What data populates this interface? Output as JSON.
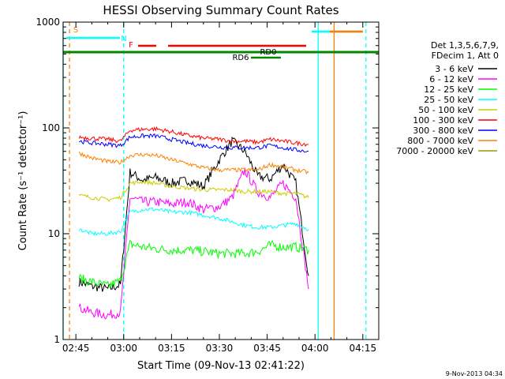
{
  "chart_data": {
    "type": "line",
    "title": "HESSI Observing Summary Count Rates",
    "xlabel": "Start Time (09-Nov-13 02:41:22)",
    "ylabel": "Count Rate (s⁻¹ detector⁻¹)",
    "y_scale": "log",
    "ylim": [
      1,
      1000
    ],
    "xlim": [
      "02:41",
      "04:20"
    ],
    "x_ticks": [
      "02:45",
      "03:00",
      "03:15",
      "03:30",
      "03:45",
      "04:00",
      "04:15"
    ],
    "y_ticks": [
      "1",
      "10",
      "100",
      "1000"
    ],
    "timestamp": "9-Nov-2013 04:34",
    "legend": {
      "position": "right",
      "header": [
        "Det 1,3,5,6,7,9,",
        "FDecim 1, Att 0"
      ],
      "entries": [
        {
          "label": "3 - 6 keV",
          "color": "#000000"
        },
        {
          "label": "6 - 12 keV",
          "color": "#ff00ff"
        },
        {
          "label": "12 - 25 keV",
          "color": "#00ff00"
        },
        {
          "label": "25 - 50 keV",
          "color": "#00ffff"
        },
        {
          "label": "50 - 100 keV",
          "color": "#cccc00"
        },
        {
          "label": "100 - 300 keV",
          "color": "#ff0000"
        },
        {
          "label": "300 - 800 keV",
          "color": "#0000ff"
        },
        {
          "label": "800 - 7000 keV",
          "color": "#ff8000"
        },
        {
          "label": "7000 - 20000 keV",
          "color": "#999900"
        }
      ]
    },
    "x": [
      "02:46",
      "02:50",
      "02:55",
      "02:59",
      "03:02",
      "03:06",
      "03:10",
      "03:15",
      "03:20",
      "03:25",
      "03:30",
      "03:34",
      "03:38",
      "03:42",
      "03:46",
      "03:50",
      "03:54",
      "03:58"
    ],
    "series": [
      {
        "name": "3 - 6 keV",
        "color": "#000000",
        "values": [
          3.5,
          3.2,
          3.0,
          3.3,
          38,
          32,
          34,
          30,
          32,
          28,
          50,
          75,
          60,
          35,
          33,
          45,
          30,
          4
        ]
      },
      {
        "name": "6 - 12 keV",
        "color": "#ff00ff",
        "values": [
          2.0,
          1.8,
          1.7,
          1.8,
          22,
          20,
          20,
          19,
          20,
          17,
          18,
          22,
          40,
          25,
          22,
          30,
          22,
          3
        ]
      },
      {
        "name": "12 - 25 keV",
        "color": "#00ff00",
        "values": [
          3.8,
          3.5,
          3.2,
          3.6,
          8.0,
          7.5,
          7.2,
          7.0,
          7.0,
          6.8,
          6.5,
          6.5,
          6.5,
          6.8,
          7.8,
          7.5,
          7.5,
          7
        ]
      },
      {
        "name": "25 - 50 keV",
        "color": "#00ffff",
        "values": [
          11,
          10,
          10,
          10.5,
          16,
          17,
          17,
          16,
          16,
          15,
          14,
          13,
          12,
          11.5,
          11.5,
          12,
          12.5,
          11
        ]
      },
      {
        "name": "50 - 100 keV",
        "color": "#cccc00",
        "values": [
          23,
          22,
          21,
          22,
          30,
          31,
          30,
          28,
          27,
          26,
          26,
          26,
          25,
          25,
          25,
          24,
          24,
          22
        ]
      },
      {
        "name": "100 - 300 keV",
        "color": "#ff0000",
        "values": [
          82,
          80,
          78,
          75,
          95,
          97,
          98,
          92,
          85,
          80,
          78,
          75,
          75,
          73,
          78,
          75,
          72,
          70
        ]
      },
      {
        "name": "300 - 800 keV",
        "color": "#0000ff",
        "values": [
          75,
          72,
          70,
          68,
          82,
          84,
          84,
          78,
          72,
          68,
          66,
          65,
          65,
          65,
          68,
          65,
          62,
          60
        ]
      },
      {
        "name": "800 - 7000 keV",
        "color": "#ff8000",
        "values": [
          58,
          52,
          48,
          47,
          55,
          56,
          55,
          50,
          46,
          42,
          40,
          40,
          40,
          40,
          45,
          43,
          40,
          38
        ]
      }
    ],
    "attenuator_labels": [
      {
        "label": "S",
        "color": "#ff8000"
      },
      {
        "label": "N",
        "color": "#00ffff"
      },
      {
        "label": "F",
        "color": "#ff0000"
      },
      {
        "label": "RD0",
        "color": "#000000"
      },
      {
        "label": "RD6",
        "color": "#000000"
      }
    ],
    "vertical_markers": [
      {
        "time": "02:41",
        "color": "#00ffff",
        "style": "solid"
      },
      {
        "time": "02:43",
        "color": "#ff8000",
        "style": "dashed"
      },
      {
        "time": "03:00",
        "color": "#00ffff",
        "style": "dashed"
      },
      {
        "time": "04:01",
        "color": "#00ffff",
        "style": "solid"
      },
      {
        "time": "04:06",
        "color": "#ff8000",
        "style": "solid"
      },
      {
        "time": "04:16",
        "color": "#00ffff",
        "style": "dashed"
      }
    ]
  }
}
